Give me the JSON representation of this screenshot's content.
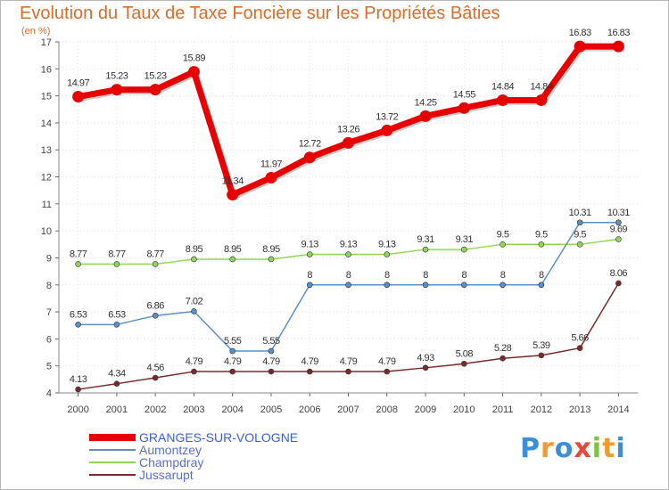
{
  "header": {
    "title": "Evolution du Taux de Taxe Foncière sur les Propriétés Bâties",
    "unit": "(en %)"
  },
  "logo": {
    "letters": [
      "P",
      "r",
      "o",
      "x",
      "i",
      "t",
      "i"
    ],
    "colors": [
      "#3a8fd8",
      "#f29a2e",
      "#3a8fd8",
      "#e8483a",
      "#7fc241",
      "#f29a2e",
      "#3a8fd8"
    ]
  },
  "chart_data": {
    "type": "line",
    "title": "Evolution du Taux de Taxe Foncière sur les Propriétés Bâties",
    "ylabel": "(en %)",
    "xlabel": "",
    "x": [
      "2000",
      "2001",
      "2002",
      "2003",
      "2004",
      "2005",
      "2006",
      "2007",
      "2008",
      "2009",
      "2010",
      "2011",
      "2012",
      "2013",
      "2014"
    ],
    "ylim": [
      4,
      17
    ],
    "yticks": [
      "4",
      "5",
      "6",
      "7",
      "8",
      "9",
      "10",
      "11",
      "12",
      "13",
      "14",
      "15",
      "16",
      "17"
    ],
    "grid": true,
    "legend_position": "bottom-left",
    "series": [
      {
        "name": "GRANGES-SUR-VOLOGNE",
        "color": "#e80000",
        "values": [
          14.97,
          15.23,
          15.23,
          15.89,
          11.34,
          11.97,
          12.72,
          13.26,
          13.72,
          14.25,
          14.55,
          14.84,
          14.84,
          16.83,
          16.83
        ],
        "labels": [
          "14.97",
          "15.23",
          "15.23",
          "15.89",
          "11.34",
          "11.97",
          "12.72",
          "13.26",
          "13.72",
          "14.25",
          "14.55",
          "14.84",
          "14.84",
          "16.83",
          "16.83"
        ]
      },
      {
        "name": "Aumontzey",
        "color": "#5a8fc8",
        "values": [
          6.53,
          6.53,
          6.86,
          7.02,
          5.55,
          5.55,
          8,
          8,
          8,
          8,
          8,
          8,
          8,
          10.31,
          10.31
        ],
        "labels": [
          "6.53",
          "6.53",
          "6.86",
          "7.02",
          "5.55",
          "5.55",
          "8",
          "8",
          "8",
          "8",
          "8",
          "8",
          "8",
          "10.31",
          "10.31"
        ]
      },
      {
        "name": "Champdray",
        "color": "#8fd65a",
        "values": [
          8.77,
          8.77,
          8.77,
          8.95,
          8.95,
          8.95,
          9.13,
          9.13,
          9.13,
          9.31,
          9.31,
          9.5,
          9.5,
          9.5,
          9.69
        ],
        "labels": [
          "8.77",
          "8.77",
          "8.77",
          "8.95",
          "8.95",
          "8.95",
          "9.13",
          "9.13",
          "9.13",
          "9.31",
          "9.31",
          "9.5",
          "9.5",
          "9.5",
          "9.69"
        ]
      },
      {
        "name": "Jussarupt",
        "color": "#7a2a2a",
        "values": [
          4.13,
          4.34,
          4.56,
          4.79,
          4.79,
          4.79,
          4.79,
          4.79,
          4.79,
          4.93,
          5.08,
          5.28,
          5.39,
          5.66,
          8.06
        ],
        "labels": [
          "4.13",
          "4.34",
          "4.56",
          "4.79",
          "4.79",
          "4.79",
          "4.79",
          "4.79",
          "4.79",
          "4.93",
          "5.08",
          "5.28",
          "5.39",
          "5.66",
          "8.06"
        ]
      }
    ]
  }
}
